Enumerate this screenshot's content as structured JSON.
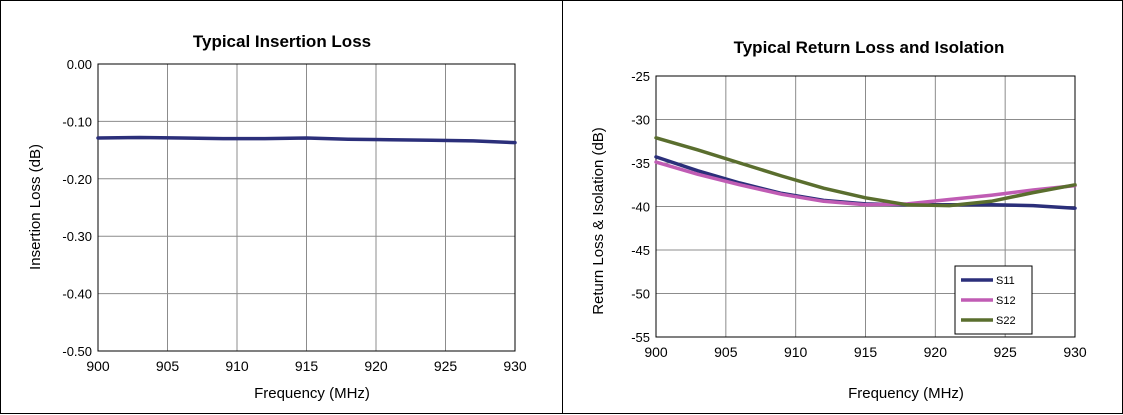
{
  "chart_data": [
    {
      "type": "line",
      "title": "Typical Insertion Loss",
      "xlabel": "Frequency (MHz)",
      "ylabel": "Insertion Loss (dB)",
      "xlim": [
        900,
        930
      ],
      "ylim": [
        -0.5,
        0.0
      ],
      "grid": true,
      "x_ticks": [
        "900",
        "905",
        "910",
        "915",
        "920",
        "925",
        "930"
      ],
      "y_ticks": [
        "0.00",
        "-0.10",
        "-0.20",
        "-0.30",
        "-0.40",
        "-0.50"
      ],
      "series": [
        {
          "color": "#2b2f7a",
          "x": [
            900,
            903,
            906,
            909,
            912,
            915,
            918,
            921,
            924,
            927,
            930
          ],
          "y": [
            -0.129,
            -0.128,
            -0.129,
            -0.13,
            -0.13,
            -0.129,
            -0.131,
            -0.132,
            -0.133,
            -0.134,
            -0.137
          ]
        }
      ]
    },
    {
      "type": "line",
      "title": "Typical Return Loss and Isolation",
      "xlabel": "Frequency (MHz)",
      "ylabel": "Return Loss & Isolation (dB)",
      "xlim": [
        900,
        930
      ],
      "ylim": [
        -55,
        -25
      ],
      "grid": true,
      "legend_position": "bottom-right",
      "x_ticks": [
        "900",
        "905",
        "910",
        "915",
        "920",
        "925",
        "930"
      ],
      "y_ticks": [
        "-25",
        "-30",
        "-35",
        "-40",
        "-45",
        "-50",
        "-55"
      ],
      "series": [
        {
          "name": "S11",
          "color": "#2b2f7a",
          "x": [
            900,
            903,
            906,
            909,
            912,
            915,
            918,
            921,
            924,
            927,
            930
          ],
          "y": [
            -34.3,
            -35.9,
            -37.3,
            -38.5,
            -39.3,
            -39.7,
            -39.8,
            -39.8,
            -39.8,
            -39.9,
            -40.2
          ]
        },
        {
          "name": "S12",
          "color": "#c05cb4",
          "x": [
            900,
            903,
            906,
            909,
            912,
            915,
            918,
            921,
            924,
            927,
            930
          ],
          "y": [
            -34.9,
            -36.3,
            -37.5,
            -38.6,
            -39.4,
            -39.8,
            -39.7,
            -39.2,
            -38.7,
            -38.1,
            -37.6
          ]
        },
        {
          "name": "S22",
          "color": "#5a6e2e",
          "x": [
            900,
            903,
            906,
            909,
            912,
            915,
            918,
            921,
            924,
            927,
            930
          ],
          "y": [
            -32.1,
            -33.5,
            -35.0,
            -36.5,
            -37.9,
            -39.0,
            -39.8,
            -39.9,
            -39.4,
            -38.4,
            -37.5
          ]
        }
      ]
    }
  ]
}
